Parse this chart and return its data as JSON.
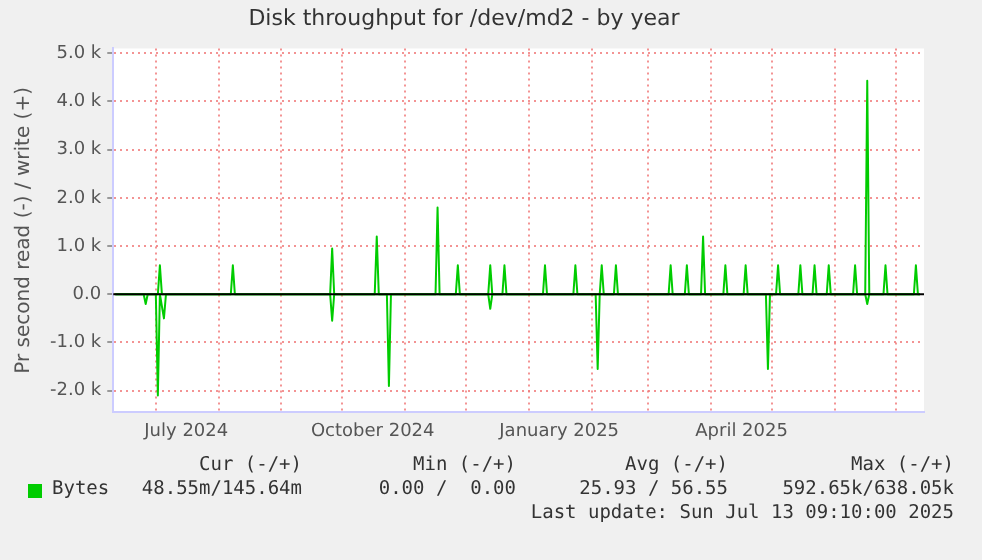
{
  "chart_data": {
    "type": "line",
    "title": "Disk throughput for /dev/md2 - by year",
    "ylabel": "Pr second read (-) / write (+)",
    "series": [
      {
        "name": "Bytes",
        "color": "#00cc00",
        "x": [
          "2024-06-11",
          "2024-07-02",
          "2024-07-03",
          "2024-07-04",
          "2024-08-07",
          "2024-08-08",
          "2024-08-09",
          "2024-09-25",
          "2024-09-26",
          "2024-09-27",
          "2024-10-17",
          "2024-10-18",
          "2024-10-19",
          "2024-11-16",
          "2024-11-17",
          "2024-11-18",
          "2024-11-26",
          "2024-11-27",
          "2024-11-28",
          "2024-12-12",
          "2024-12-13",
          "2024-12-14",
          "2024-12-19",
          "2024-12-20",
          "2024-12-21",
          "2025-01-08",
          "2025-01-09",
          "2025-01-10",
          "2025-01-23",
          "2025-01-24",
          "2025-01-25",
          "2025-02-05",
          "2025-02-06",
          "2025-02-07",
          "2025-02-12",
          "2025-02-13",
          "2025-02-14",
          "2025-03-11",
          "2025-03-12",
          "2025-03-13",
          "2025-03-19",
          "2025-03-20",
          "2025-03-21",
          "2025-03-27",
          "2025-03-28",
          "2025-03-29",
          "2025-04-07",
          "2025-04-08",
          "2025-04-09",
          "2025-04-17",
          "2025-04-18",
          "2025-04-19",
          "2025-05-03",
          "2025-05-04",
          "2025-05-05",
          "2025-05-14",
          "2025-05-15",
          "2025-05-16",
          "2025-05-21",
          "2025-05-22",
          "2025-05-23",
          "2025-05-28",
          "2025-05-29",
          "2025-05-30",
          "2025-06-10",
          "2025-06-11",
          "2025-06-12",
          "2025-06-16",
          "2025-06-17",
          "2025-06-18",
          "2025-06-25",
          "2025-06-26",
          "2025-06-27",
          "2025-07-10",
          "2025-07-11",
          "2025-07-12",
          "2025-07-13"
        ],
        "values": [
          0,
          0,
          600,
          0,
          0,
          600,
          0,
          0,
          950,
          0,
          0,
          1200,
          0,
          0,
          1800,
          0,
          0,
          600,
          0,
          0,
          600,
          0,
          0,
          600,
          0,
          0,
          600,
          0,
          0,
          600,
          0,
          0,
          600,
          0,
          0,
          600,
          0,
          0,
          600,
          0,
          0,
          600,
          0,
          0,
          1200,
          0,
          0,
          600,
          0,
          0,
          600,
          0,
          0,
          600,
          0,
          0,
          600,
          0,
          0,
          600,
          0,
          0,
          600,
          0,
          0,
          600,
          0,
          0,
          4430,
          0,
          0,
          600,
          0,
          0,
          600,
          0,
          0
        ]
      },
      {
        "color": "#00cc00",
        "x": [
          "2024-06-11",
          "2024-06-25",
          "2024-06-26",
          "2024-06-27",
          "2024-07-01",
          "2024-07-02",
          "2024-07-03",
          "2024-07-05",
          "2024-07-06",
          "2024-09-25",
          "2024-09-26",
          "2024-09-27",
          "2024-10-23",
          "2024-10-24",
          "2024-10-25",
          "2024-12-12",
          "2024-12-13",
          "2024-12-14",
          "2025-02-03",
          "2025-02-04",
          "2025-02-05",
          "2025-04-28",
          "2025-04-29",
          "2025-04-30",
          "2025-06-16",
          "2025-06-17",
          "2025-06-18",
          "2025-07-13"
        ],
        "values": [
          0,
          0,
          -200,
          0,
          0,
          -2100,
          0,
          -500,
          0,
          0,
          -550,
          0,
          0,
          -1900,
          0,
          0,
          -300,
          0,
          0,
          -1550,
          0,
          0,
          -1550,
          0,
          0,
          -200,
          0,
          0
        ]
      }
    ],
    "xlim": [
      "2024-06-10",
      "2025-07-15"
    ],
    "xticks": [
      {
        "value": "2024-07-01",
        "label": null
      },
      {
        "value": "2024-07-16",
        "label": "July 2024"
      },
      {
        "value": "2024-08-01",
        "label": null
      },
      {
        "value": "2024-09-01",
        "label": null
      },
      {
        "value": "2024-10-01",
        "label": null
      },
      {
        "value": "2024-10-16",
        "label": "October 2024"
      },
      {
        "value": "2024-11-01",
        "label": null
      },
      {
        "value": "2024-12-01",
        "label": null
      },
      {
        "value": "2025-01-01",
        "label": null
      },
      {
        "value": "2025-01-16",
        "label": "January 2025"
      },
      {
        "value": "2025-02-01",
        "label": null
      },
      {
        "value": "2025-03-01",
        "label": null
      },
      {
        "value": "2025-04-01",
        "label": null
      },
      {
        "value": "2025-04-16",
        "label": "April 2025"
      },
      {
        "value": "2025-05-01",
        "label": null
      },
      {
        "value": "2025-06-01",
        "label": null
      },
      {
        "value": "2025-07-01",
        "label": null
      }
    ],
    "ylim": [
      -2450,
      5100
    ],
    "yticks": [
      {
        "value": -2000,
        "label": "-2.0 k"
      },
      {
        "value": -1000,
        "label": "-1.0 k"
      },
      {
        "value": 0,
        "label": "0.0"
      },
      {
        "value": 1000,
        "label": "1.0 k"
      },
      {
        "value": 2000,
        "label": "2.0 k"
      },
      {
        "value": 3000,
        "label": "3.0 k"
      },
      {
        "value": 4000,
        "label": "4.0 k"
      },
      {
        "value": 5000,
        "label": "5.0 k"
      }
    ],
    "ref_lines": [
      {
        "axis": "y",
        "value": 0,
        "color": "#000000"
      }
    ],
    "grid": true,
    "legend": "bottom left",
    "marker": "none",
    "line_style": "solid",
    "annotations": [
      "Cur (-/+)",
      "Min (-/+)",
      "Avg (-/+)",
      "Max (-/+)",
      "48.55m/145.64m",
      "0.00 /  0.00",
      "25.93 / 56.55",
      "592.65k/638.05k",
      "Last update: Sun Jul 13 09:10:00 2025"
    ]
  }
}
